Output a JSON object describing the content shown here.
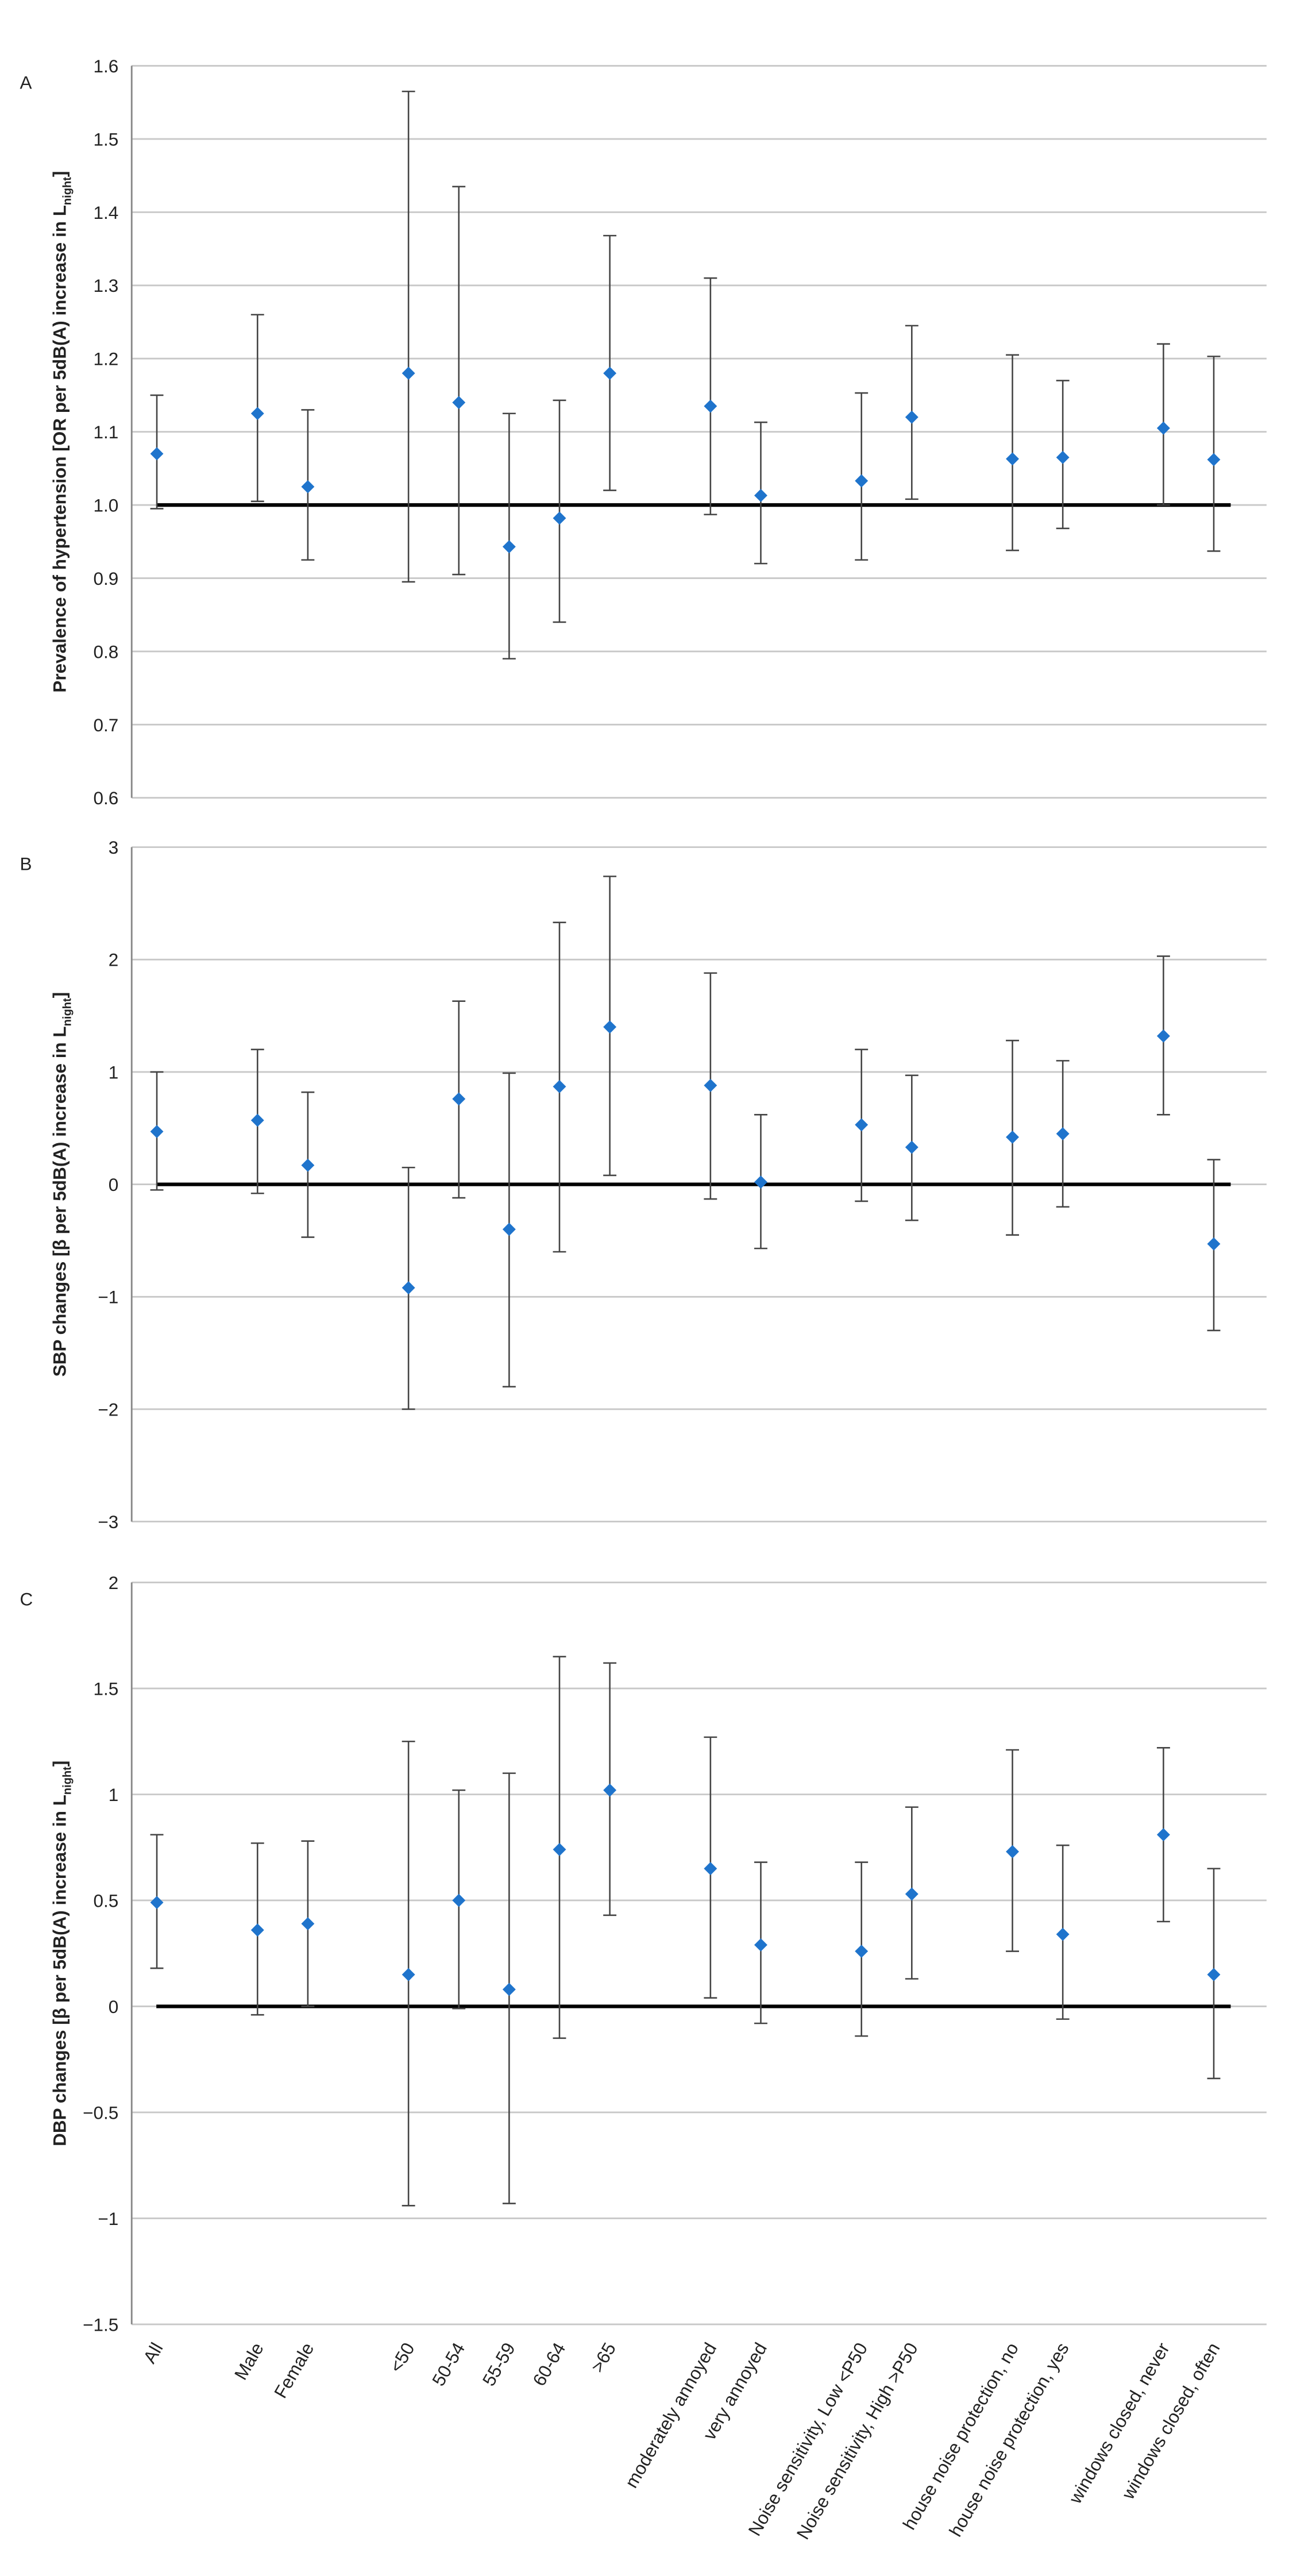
{
  "chart_data": [
    {
      "type": "errorbar",
      "panel": "A",
      "ylabel": "Prevalence of hypertension [OR per 5dB(A) increase in L",
      "ylabel_sub": "night",
      "ylabel_end": "]",
      "ylim": [
        0.6,
        1.6
      ],
      "yticks": [
        0.6,
        0.7,
        0.8,
        0.9,
        {
          "value": 1,
          "label": "1.0"
        },
        1.1,
        1.2,
        1.3,
        1.4,
        1.5,
        1.6
      ],
      "reference_line": 1,
      "grid": true,
      "color": "#1f74cc",
      "values": [
        1.07,
        null,
        1.125,
        1.025,
        null,
        1.18,
        1.14,
        0.943,
        0.982,
        1.18,
        null,
        1.135,
        1.013,
        null,
        1.033,
        1.12,
        null,
        1.063,
        1.065,
        null,
        1.105,
        1.062
      ],
      "lower": [
        0.995,
        null,
        1.005,
        0.925,
        null,
        0.895,
        0.905,
        0.79,
        0.84,
        1.02,
        null,
        0.987,
        0.92,
        null,
        0.925,
        1.008,
        null,
        0.938,
        0.968,
        null,
        1.0,
        0.937
      ],
      "upper": [
        1.15,
        null,
        1.26,
        1.13,
        null,
        1.565,
        1.435,
        1.125,
        1.143,
        1.368,
        null,
        1.31,
        1.113,
        null,
        1.153,
        1.245,
        null,
        1.205,
        1.17,
        null,
        1.22,
        1.203
      ]
    },
    {
      "type": "errorbar",
      "panel": "B",
      "ylabel": "SBP changes [β per 5dB(A) increase in L",
      "ylabel_sub": "night",
      "ylabel_end": "]",
      "ylim": [
        -3,
        3
      ],
      "yticks": [
        {
          "value": -3,
          "label": "−3"
        },
        {
          "value": -2,
          "label": "−2"
        },
        {
          "value": -1,
          "label": "−1"
        },
        0,
        1,
        2,
        3
      ],
      "reference_line": 0,
      "grid": true,
      "color": "#1f74cc",
      "values": [
        0.47,
        null,
        0.57,
        0.17,
        null,
        -0.92,
        0.76,
        -0.4,
        0.87,
        1.4,
        null,
        0.88,
        0.02,
        null,
        0.53,
        0.33,
        null,
        0.42,
        0.45,
        null,
        1.32,
        -0.53
      ],
      "lower": [
        -0.05,
        null,
        -0.08,
        -0.47,
        null,
        -2.0,
        -0.12,
        -1.8,
        -0.6,
        0.08,
        null,
        -0.13,
        -0.57,
        null,
        -0.15,
        -0.32,
        null,
        -0.45,
        -0.2,
        null,
        0.62,
        -1.3
      ],
      "upper": [
        1.0,
        null,
        1.2,
        0.82,
        null,
        0.15,
        1.63,
        0.99,
        2.33,
        2.74,
        null,
        1.88,
        0.62,
        null,
        1.2,
        0.97,
        null,
        1.28,
        1.1,
        null,
        2.03,
        0.22
      ]
    },
    {
      "type": "errorbar",
      "panel": "C",
      "ylabel": "DBP changes [β per 5dB(A) increase in L",
      "ylabel_sub": "night",
      "ylabel_end": "]",
      "ylim": [
        -1.5,
        2
      ],
      "yticks": [
        {
          "value": -1.5,
          "label": "−1.5"
        },
        {
          "value": -1,
          "label": "−1"
        },
        {
          "value": -0.5,
          "label": "−0.5"
        },
        0,
        0.5,
        1,
        1.5,
        2
      ],
      "reference_line": 0,
      "grid": true,
      "color": "#1f74cc",
      "categories": [
        "All",
        null,
        "Male",
        "Female",
        null,
        "<50",
        "50-54",
        "55-59",
        "60-64",
        ">65",
        null,
        "moderately annoyed",
        "very annoyed",
        null,
        "Noise sensitivity, Low <P50",
        "Noise sensitivity, High >P50",
        null,
        "house noise protection, no",
        "house noise protection, yes",
        null,
        "windows closed, never",
        "windows closed, often"
      ],
      "values": [
        0.49,
        null,
        0.36,
        0.39,
        null,
        0.15,
        0.5,
        0.08,
        0.74,
        1.02,
        null,
        0.65,
        0.29,
        null,
        0.26,
        0.53,
        null,
        0.73,
        0.34,
        null,
        0.81,
        0.15
      ],
      "lower": [
        0.18,
        null,
        -0.04,
        0.0,
        null,
        -0.94,
        -0.01,
        -0.93,
        -0.15,
        0.43,
        null,
        0.04,
        -0.08,
        null,
        -0.14,
        0.13,
        null,
        0.26,
        -0.06,
        null,
        0.4,
        -0.34
      ],
      "upper": [
        0.81,
        null,
        0.77,
        0.78,
        null,
        1.25,
        1.02,
        1.1,
        1.65,
        1.62,
        null,
        1.27,
        0.68,
        null,
        0.68,
        0.94,
        null,
        1.21,
        0.76,
        null,
        1.22,
        0.65
      ]
    }
  ]
}
